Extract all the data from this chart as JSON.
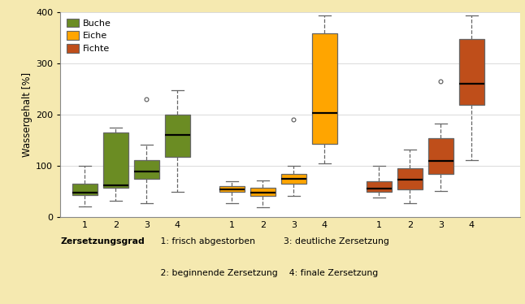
{
  "background_color": "#f5e9b0",
  "plot_bg_color": "#ffffff",
  "colors": {
    "Buche": "#6b8c23",
    "Eiche": "#ffa500",
    "Fichte": "#bf4e1a"
  },
  "ylabel": "Wassergehalt [%]",
  "ylim": [
    0,
    400
  ],
  "yticks": [
    0,
    100,
    200,
    300,
    400
  ],
  "species": [
    "Buche",
    "Eiche",
    "Fichte"
  ],
  "boxes": {
    "Buche": {
      "1": {
        "whislo": 22,
        "q1": 44,
        "med": 48,
        "q3": 65,
        "whishi": 100,
        "fliers": []
      },
      "2": {
        "whislo": 32,
        "q1": 57,
        "med": 63,
        "q3": 165,
        "whishi": 175,
        "fliers": []
      },
      "3": {
        "whislo": 28,
        "q1": 75,
        "med": 90,
        "q3": 112,
        "whishi": 142,
        "fliers": [
          230
        ]
      },
      "4": {
        "whislo": 50,
        "q1": 118,
        "med": 160,
        "q3": 200,
        "whishi": 248,
        "fliers": []
      }
    },
    "Eiche": {
      "1": {
        "whislo": 27,
        "q1": 50,
        "med": 54,
        "q3": 61,
        "whishi": 70,
        "fliers": []
      },
      "2": {
        "whislo": 20,
        "q1": 42,
        "med": 48,
        "q3": 57,
        "whishi": 72,
        "fliers": []
      },
      "3": {
        "whislo": 42,
        "q1": 65,
        "med": 75,
        "q3": 85,
        "whishi": 100,
        "fliers": [
          190
        ]
      },
      "4": {
        "whislo": 105,
        "q1": 143,
        "med": 203,
        "q3": 358,
        "whishi": 393,
        "fliers": []
      }
    },
    "Fichte": {
      "1": {
        "whislo": 38,
        "q1": 50,
        "med": 56,
        "q3": 70,
        "whishi": 100,
        "fliers": []
      },
      "2": {
        "whislo": 28,
        "q1": 55,
        "med": 73,
        "q3": 96,
        "whishi": 132,
        "fliers": []
      },
      "3": {
        "whislo": 52,
        "q1": 85,
        "med": 110,
        "q3": 155,
        "whishi": 183,
        "fliers": [
          265
        ]
      },
      "4": {
        "whislo": 112,
        "q1": 220,
        "med": 260,
        "q3": 348,
        "whishi": 393,
        "fliers": []
      }
    }
  }
}
